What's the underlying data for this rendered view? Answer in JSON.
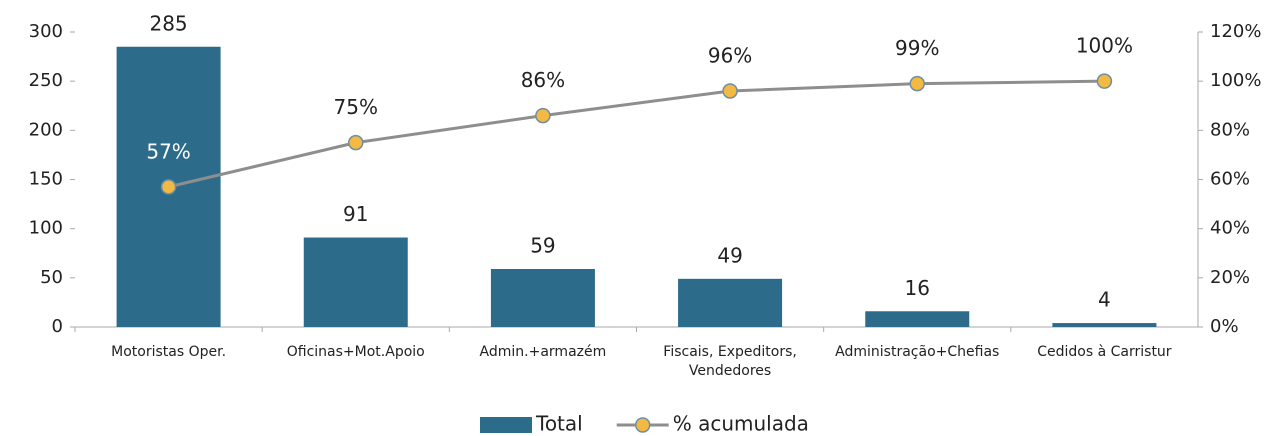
{
  "chart_data": {
    "type": "bar",
    "categories": [
      "Motoristas Oper.",
      "Oficinas+Mot.Apoio",
      "Admin.+armazém",
      "Fiscais, Expeditors, Vendedores",
      "Administração+Chefias",
      "Cedidos à Carristur"
    ],
    "series": [
      {
        "name": "Total",
        "type": "bar",
        "color": "#2d6b8b",
        "values": [
          285,
          91,
          59,
          49,
          16,
          4
        ]
      },
      {
        "name": "% acumulada",
        "type": "line",
        "axis": "y2",
        "color": "#8e8e8e",
        "marker_color": "#f4b942",
        "values": [
          57,
          75,
          86,
          96,
          99,
          100
        ],
        "value_labels": [
          "57%",
          "75%",
          "86%",
          "96%",
          "99%",
          "100%"
        ]
      }
    ],
    "ylim": [
      0,
      300
    ],
    "yticks": [
      0,
      50,
      100,
      150,
      200,
      250,
      300
    ],
    "y2lim": [
      0,
      120
    ],
    "y2ticks": [
      {
        "value": 0,
        "label": "0%"
      },
      {
        "value": 20,
        "label": "20%"
      },
      {
        "value": 40,
        "label": "40%"
      },
      {
        "value": 60,
        "label": "60%"
      },
      {
        "value": 80,
        "label": "80%"
      },
      {
        "value": 100,
        "label": "100%"
      },
      {
        "value": 120,
        "label": "120%"
      }
    ],
    "legend": "bottom"
  }
}
